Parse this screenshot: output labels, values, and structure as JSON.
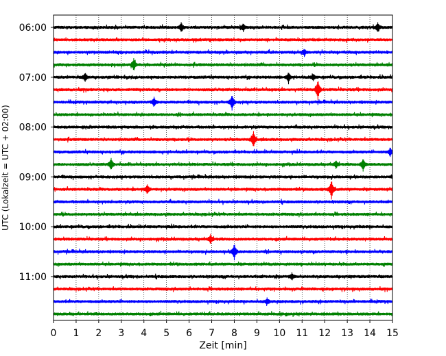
{
  "chart_data": {
    "type": "line",
    "title": "",
    "xlabel": "Zeit  [min]",
    "ylabel": "UTC (Lokalzeit = UTC + 02:00)",
    "xlim": [
      0,
      15
    ],
    "x_ticks": [
      "0",
      "1",
      "2",
      "3",
      "4",
      "5",
      "6",
      "7",
      "8",
      "9",
      "10",
      "11",
      "12",
      "13",
      "14",
      "15"
    ],
    "y_ticks": [
      "06:00",
      "07:00",
      "08:00",
      "09:00",
      "10:00",
      "11:00"
    ],
    "grid": "vertical-dotted",
    "trace_interval_min": 15,
    "colors": [
      "#000000",
      "#ff0000",
      "#0000ff",
      "#008000"
    ],
    "traces": [
      {
        "start": "06:00",
        "color": "#000000",
        "events": [
          {
            "t": 5.65,
            "a": 0.5
          },
          {
            "t": 8.4,
            "a": 0.45
          },
          {
            "t": 14.35,
            "a": 0.55
          }
        ]
      },
      {
        "start": "06:15",
        "color": "#ff0000",
        "events": []
      },
      {
        "start": "06:30",
        "color": "#0000ff",
        "events": [
          {
            "t": 11.1,
            "a": 0.35
          }
        ]
      },
      {
        "start": "06:45",
        "color": "#008000",
        "events": [
          {
            "t": 3.55,
            "a": 0.75
          }
        ]
      },
      {
        "start": "07:00",
        "color": "#000000",
        "events": [
          {
            "t": 1.4,
            "a": 0.5
          },
          {
            "t": 10.4,
            "a": 0.6
          },
          {
            "t": 11.5,
            "a": 0.35
          }
        ]
      },
      {
        "start": "07:15",
        "color": "#ff0000",
        "events": [
          {
            "t": 11.7,
            "a": 1.2
          }
        ]
      },
      {
        "start": "07:30",
        "color": "#0000ff",
        "events": [
          {
            "t": 4.45,
            "a": 0.55
          },
          {
            "t": 7.9,
            "a": 0.95
          }
        ]
      },
      {
        "start": "07:45",
        "color": "#008000",
        "events": []
      },
      {
        "start": "08:00",
        "color": "#000000",
        "events": []
      },
      {
        "start": "08:15",
        "color": "#ff0000",
        "events": [
          {
            "t": 8.85,
            "a": 1.0
          }
        ]
      },
      {
        "start": "08:30",
        "color": "#0000ff",
        "events": [
          {
            "t": 14.9,
            "a": 0.5
          }
        ]
      },
      {
        "start": "08:45",
        "color": "#008000",
        "events": [
          {
            "t": 2.55,
            "a": 0.7
          },
          {
            "t": 12.5,
            "a": 0.45
          },
          {
            "t": 13.7,
            "a": 0.75
          }
        ]
      },
      {
        "start": "09:00",
        "color": "#000000",
        "events": []
      },
      {
        "start": "09:15",
        "color": "#ff0000",
        "events": [
          {
            "t": 4.15,
            "a": 0.55
          },
          {
            "t": 12.3,
            "a": 1.2
          }
        ]
      },
      {
        "start": "09:30",
        "color": "#0000ff",
        "events": []
      },
      {
        "start": "09:45",
        "color": "#008000",
        "events": []
      },
      {
        "start": "10:00",
        "color": "#000000",
        "events": []
      },
      {
        "start": "10:15",
        "color": "#ff0000",
        "events": [
          {
            "t": 6.95,
            "a": 0.55
          }
        ]
      },
      {
        "start": "10:30",
        "color": "#0000ff",
        "events": [
          {
            "t": 8.0,
            "a": 1.0
          }
        ]
      },
      {
        "start": "10:45",
        "color": "#008000",
        "events": []
      },
      {
        "start": "11:00",
        "color": "#000000",
        "events": [
          {
            "t": 10.55,
            "a": 0.4
          }
        ]
      },
      {
        "start": "11:15",
        "color": "#ff0000",
        "events": []
      },
      {
        "start": "11:30",
        "color": "#0000ff",
        "events": [
          {
            "t": 9.45,
            "a": 0.35
          }
        ]
      },
      {
        "start": "11:45",
        "color": "#008000",
        "events": []
      }
    ]
  }
}
